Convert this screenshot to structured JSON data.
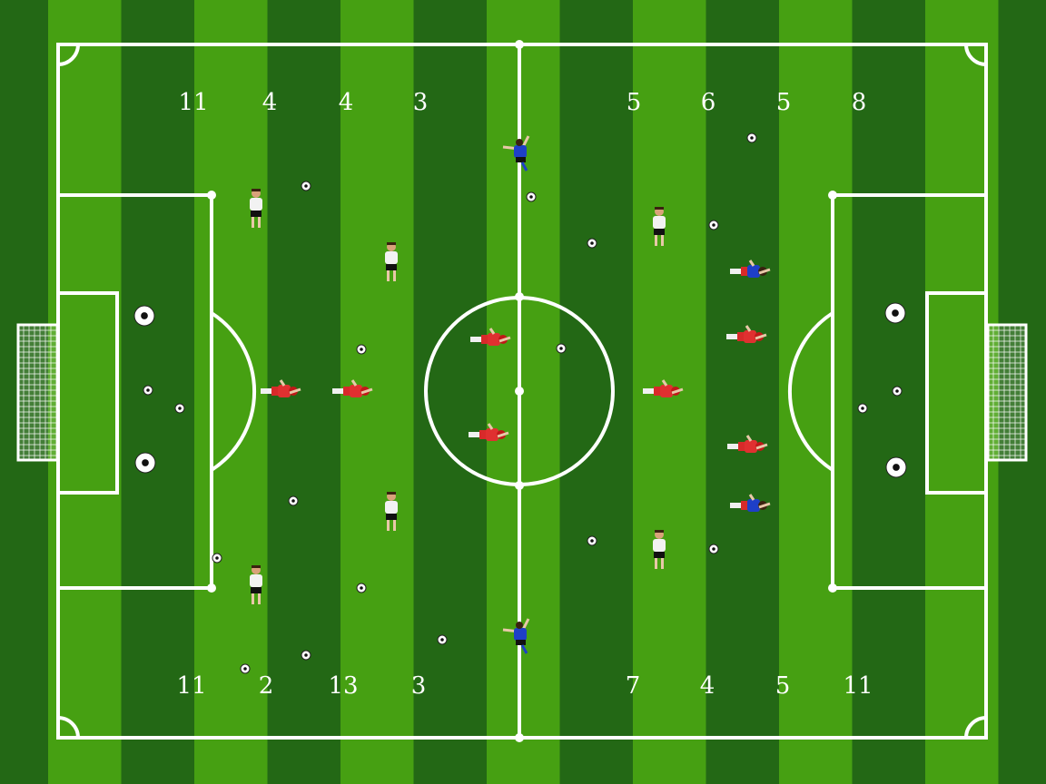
{
  "colors": {
    "stripe_light": "#46a012",
    "stripe_dark": "#236815",
    "line": "#ffffff",
    "team_white_shirt": "#f2f2f2",
    "team_white_shorts": "#111111",
    "team_red_shirt": "#e03030",
    "team_blue_shirt": "#1e3fc8"
  },
  "top_numbers": {
    "left": [
      "11",
      "4",
      "4",
      "3"
    ],
    "right": [
      "5",
      "6",
      "5",
      "8"
    ]
  },
  "bottom_numbers": {
    "left": [
      "11",
      "2",
      "13",
      "3"
    ],
    "right": [
      "7",
      "4",
      "5",
      "11"
    ]
  },
  "players": {
    "white_team_count": 6,
    "red_team_count": 7,
    "blue_team_count": 4
  }
}
